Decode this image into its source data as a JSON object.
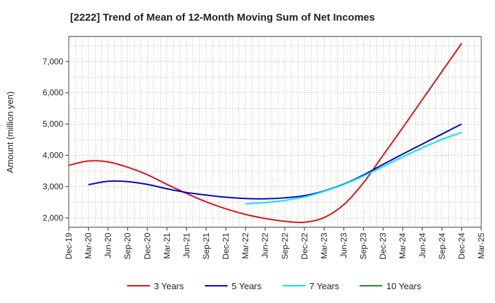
{
  "chart_data": {
    "type": "line",
    "title": "[2222]  Trend of Mean of 12-Month Moving Sum of Net Incomes",
    "ylabel": "Amount (million yen)",
    "xlabel": "",
    "ylim": [
      1700,
      7800
    ],
    "yticks": [
      2000,
      3000,
      4000,
      5000,
      6000,
      7000
    ],
    "ytick_labels": [
      "2,000",
      "3,000",
      "4,000",
      "5,000",
      "6,000",
      "7,000"
    ],
    "x_start": "2019-12",
    "x_end": "2025-03",
    "xtick_labels": [
      "Dec-19",
      "Mar-20",
      "Jun-20",
      "Sep-20",
      "Dec-20",
      "Mar-21",
      "Jun-21",
      "Sep-21",
      "Dec-21",
      "Mar-22",
      "Jun-22",
      "Sep-22",
      "Dec-22",
      "Mar-23",
      "Jun-23",
      "Sep-23",
      "Dec-23",
      "Mar-24",
      "Jun-24",
      "Sep-24",
      "Dec-24",
      "Mar-25"
    ],
    "grid": true,
    "legend_position": "bottom",
    "series": [
      {
        "name": "3 Years",
        "color": "#dd1111",
        "points": [
          [
            "2019-12",
            3680
          ],
          [
            "2020-03",
            3820
          ],
          [
            "2020-06",
            3790
          ],
          [
            "2020-09",
            3620
          ],
          [
            "2020-12",
            3380
          ],
          [
            "2021-03",
            3070
          ],
          [
            "2021-06",
            2780
          ],
          [
            "2021-09",
            2510
          ],
          [
            "2021-12",
            2290
          ],
          [
            "2022-03",
            2110
          ],
          [
            "2022-06",
            1980
          ],
          [
            "2022-09",
            1890
          ],
          [
            "2022-12",
            1860
          ],
          [
            "2023-03",
            2010
          ],
          [
            "2023-06",
            2420
          ],
          [
            "2023-09",
            3120
          ],
          [
            "2023-12",
            4000
          ],
          [
            "2024-03",
            4880
          ],
          [
            "2024-06",
            5780
          ],
          [
            "2024-09",
            6680
          ],
          [
            "2024-12",
            7580
          ]
        ]
      },
      {
        "name": "5 Years",
        "color": "#0000cc",
        "points": [
          [
            "2020-03",
            3060
          ],
          [
            "2020-06",
            3170
          ],
          [
            "2020-09",
            3160
          ],
          [
            "2020-12",
            3070
          ],
          [
            "2021-03",
            2930
          ],
          [
            "2021-06",
            2810
          ],
          [
            "2021-09",
            2730
          ],
          [
            "2021-12",
            2660
          ],
          [
            "2022-03",
            2620
          ],
          [
            "2022-06",
            2610
          ],
          [
            "2022-09",
            2640
          ],
          [
            "2022-12",
            2710
          ],
          [
            "2023-03",
            2860
          ],
          [
            "2023-06",
            3080
          ],
          [
            "2023-09",
            3370
          ],
          [
            "2023-12",
            3710
          ],
          [
            "2024-03",
            4040
          ],
          [
            "2024-06",
            4360
          ],
          [
            "2024-09",
            4680
          ],
          [
            "2024-12",
            5000
          ]
        ]
      },
      {
        "name": "7 Years",
        "color": "#00e5ee",
        "points": [
          [
            "2022-03",
            2450
          ],
          [
            "2022-06",
            2490
          ],
          [
            "2022-09",
            2560
          ],
          [
            "2022-12",
            2670
          ],
          [
            "2023-03",
            2850
          ],
          [
            "2023-06",
            3070
          ],
          [
            "2023-09",
            3340
          ],
          [
            "2023-12",
            3640
          ],
          [
            "2024-03",
            3950
          ],
          [
            "2024-06",
            4240
          ],
          [
            "2024-09",
            4510
          ],
          [
            "2024-12",
            4730
          ]
        ]
      },
      {
        "name": "10 Years",
        "color": "#228b22",
        "points": []
      }
    ]
  }
}
